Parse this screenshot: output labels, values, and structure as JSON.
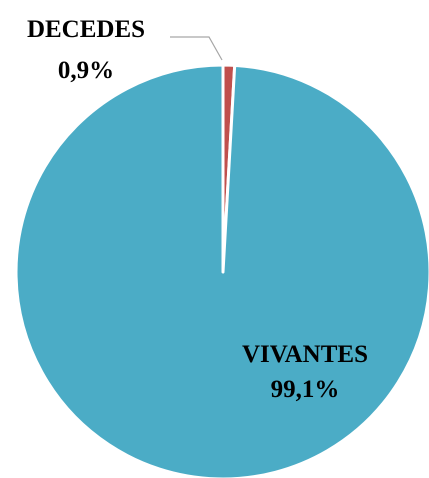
{
  "chart_data": {
    "type": "pie",
    "slices": [
      {
        "label": "DECEDES",
        "value": 0.9,
        "value_label": "0,9%",
        "color": "#C0504D"
      },
      {
        "label": "VIVANTES",
        "value": 99.1,
        "value_label": "99,1%",
        "color": "#4BACC6"
      }
    ],
    "start_angle": "12 o'clock",
    "direction": "clockwise",
    "slice_border_color": "#ffffff",
    "leader_line_color": "#A6A6A6",
    "legend": "none"
  }
}
